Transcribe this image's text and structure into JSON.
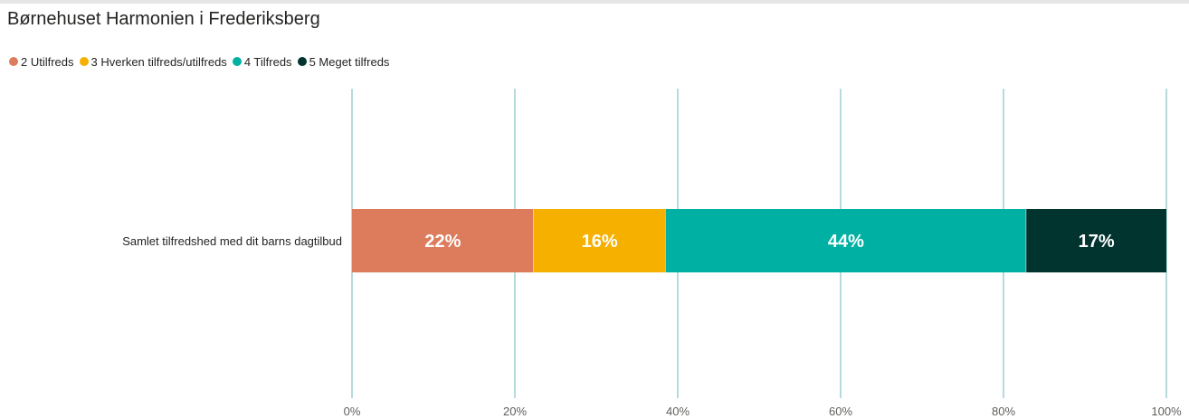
{
  "chart_data": {
    "type": "bar",
    "orientation": "horizontal",
    "stacked": true,
    "title": "Børnehuset Harmonien i Frederiksberg",
    "categories": [
      "Samlet tilfredshed med dit barns dagtilbud"
    ],
    "series": [
      {
        "name": "2 Utilfreds",
        "color": "#dd7c5c",
        "values": [
          22.3
        ],
        "label": "22%"
      },
      {
        "name": "3 Hverken tilfreds/utilfreds",
        "color": "#f5b000",
        "values": [
          16.2
        ],
        "label": "16%"
      },
      {
        "name": "4 Tilfreds",
        "color": "#00b0a3",
        "values": [
          44.3
        ],
        "label": "44%"
      },
      {
        "name": "5 Meget tilfreds",
        "color": "#01332f",
        "values": [
          17.2
        ],
        "label": "17%"
      }
    ],
    "xlim": [
      0,
      100
    ],
    "x_ticks": [
      "0%",
      "20%",
      "40%",
      "60%",
      "80%",
      "100%"
    ],
    "legend_position": "top-left",
    "grid": true,
    "gridline_color": "#6fb5b8"
  }
}
